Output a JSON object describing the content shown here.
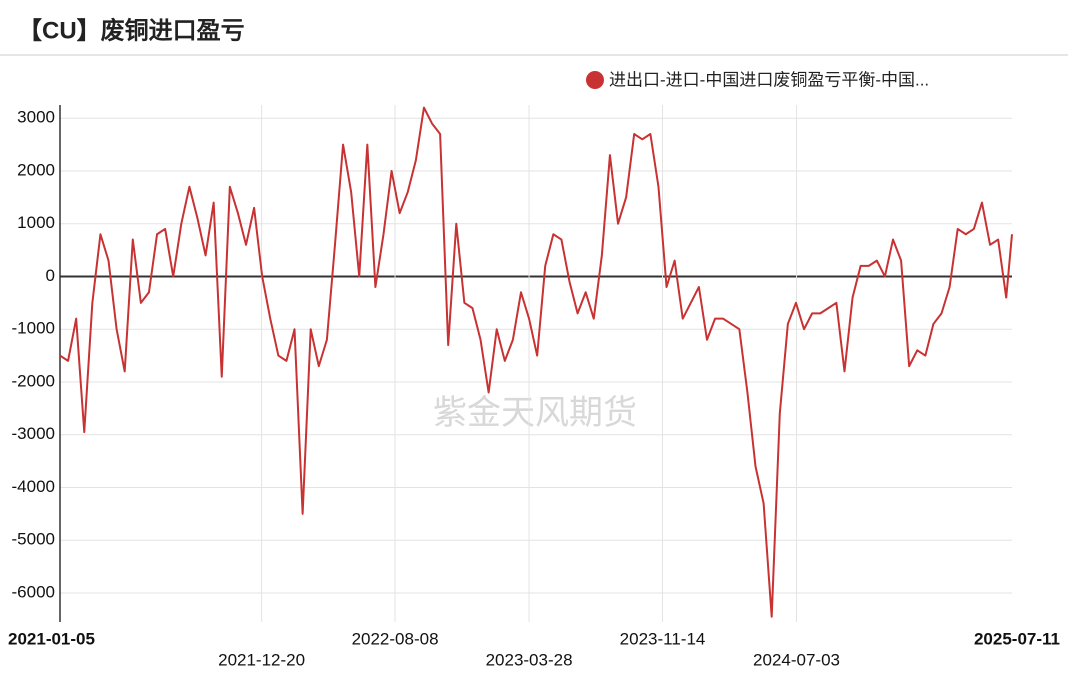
{
  "chart_data": {
    "type": "line",
    "title": "【CU】废铜进口盈亏",
    "watermark": "紫金天风期货",
    "x": [
      "2021-01-05",
      "2021-01-19",
      "2021-02-02",
      "2021-02-16",
      "2021-03-02",
      "2021-03-16",
      "2021-03-30",
      "2021-04-13",
      "2021-04-27",
      "2021-05-11",
      "2021-05-25",
      "2021-06-08",
      "2021-06-22",
      "2021-07-06",
      "2021-07-20",
      "2021-08-03",
      "2021-08-17",
      "2021-08-31",
      "2021-09-14",
      "2021-09-28",
      "2021-10-12",
      "2021-10-26",
      "2021-11-09",
      "2021-11-23",
      "2021-12-07",
      "2021-12-21",
      "2022-01-04",
      "2022-01-18",
      "2022-02-01",
      "2022-02-15",
      "2022-03-01",
      "2022-03-15",
      "2022-03-29",
      "2022-04-12",
      "2022-04-26",
      "2022-05-10",
      "2022-05-24",
      "2022-06-07",
      "2022-06-21",
      "2022-07-05",
      "2022-07-19",
      "2022-08-02",
      "2022-08-16",
      "2022-08-30",
      "2022-09-13",
      "2022-09-27",
      "2022-10-11",
      "2022-10-25",
      "2022-11-08",
      "2022-11-22",
      "2022-12-06",
      "2022-12-20",
      "2023-01-03",
      "2023-01-17",
      "2023-01-31",
      "2023-02-14",
      "2023-02-28",
      "2023-03-14",
      "2023-03-28",
      "2023-04-11",
      "2023-04-25",
      "2023-05-09",
      "2023-05-23",
      "2023-06-06",
      "2023-06-20",
      "2023-07-04",
      "2023-07-18",
      "2023-08-01",
      "2023-08-15",
      "2023-08-29",
      "2023-09-12",
      "2023-09-26",
      "2023-10-10",
      "2023-10-24",
      "2023-11-07",
      "2023-11-21",
      "2023-12-05",
      "2023-12-19",
      "2024-01-02",
      "2024-01-16",
      "2024-01-30",
      "2024-02-13",
      "2024-02-27",
      "2024-03-12",
      "2024-03-26",
      "2024-04-09",
      "2024-04-23",
      "2024-05-07",
      "2024-05-21",
      "2024-06-04",
      "2024-06-18",
      "2024-07-02",
      "2024-07-16",
      "2024-07-30",
      "2024-08-13",
      "2024-08-27",
      "2024-09-10",
      "2024-09-24",
      "2024-10-08",
      "2024-10-22",
      "2024-11-05",
      "2024-11-19",
      "2024-12-03",
      "2024-12-17",
      "2024-12-31",
      "2025-01-14",
      "2025-01-28",
      "2025-02-11",
      "2025-02-25",
      "2025-03-11",
      "2025-03-25",
      "2025-04-08",
      "2025-04-22",
      "2025-05-06",
      "2025-05-20",
      "2025-06-03",
      "2025-06-17",
      "2025-07-01",
      "2025-07-11"
    ],
    "series": [
      {
        "name": "进出口-进口-中国进口废铜盈亏平衡-中国...",
        "color": "#c83232",
        "values": [
          -1500,
          -1600,
          -800,
          -2950,
          -500,
          800,
          300,
          -1000,
          -1800,
          700,
          -500,
          -300,
          800,
          900,
          0,
          1000,
          1700,
          1100,
          400,
          1400,
          -1900,
          1700,
          1200,
          600,
          1300,
          0,
          -800,
          -1500,
          -1600,
          -1000,
          -4500,
          -1000,
          -1700,
          -1200,
          600,
          2500,
          1600,
          0,
          2500,
          -200,
          800,
          2000,
          1200,
          1600,
          2200,
          3200,
          2900,
          2700,
          -1300,
          1000,
          -500,
          -600,
          -1200,
          -2200,
          -1000,
          -1600,
          -1200,
          -300,
          -800,
          -1500,
          200,
          800,
          700,
          -100,
          -700,
          -300,
          -800,
          400,
          2300,
          1000,
          1500,
          2700,
          2600,
          2700,
          1700,
          -200,
          300,
          -800,
          -500,
          -200,
          -1200,
          -800,
          -800,
          -900,
          -1000,
          -2200,
          -3600,
          -4300,
          -6450,
          -2600,
          -900,
          -500,
          -1000,
          -700,
          -700,
          -600,
          -500,
          -1800,
          -400,
          200,
          200,
          300,
          0,
          700,
          300,
          -1700,
          -1400,
          -1500,
          -900,
          -700,
          -200,
          900,
          800,
          900,
          1400,
          600,
          700,
          -400,
          800
        ]
      }
    ],
    "xlim": [
      "2021-01-05",
      "2025-07-11"
    ],
    "xticks": [
      "2021-01-05",
      "2021-12-20",
      "2022-08-08",
      "2023-03-28",
      "2023-11-14",
      "2024-07-03",
      "2025-07-11"
    ],
    "ylim": [
      -6550,
      3250
    ],
    "yticks": [
      -6000,
      -5000,
      -4000,
      -3000,
      -2000,
      -1000,
      0,
      1000,
      2000,
      3000
    ],
    "grid": true
  }
}
